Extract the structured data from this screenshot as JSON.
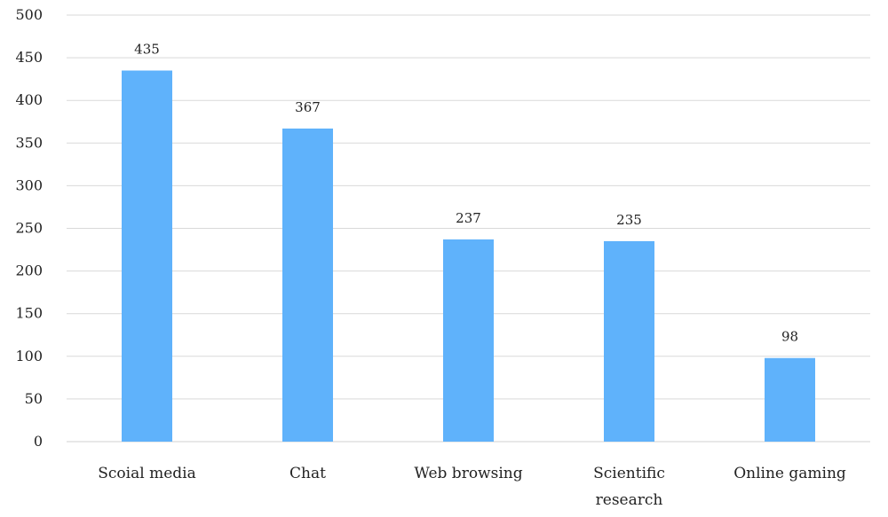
{
  "chart_data": {
    "type": "bar",
    "categories": [
      "Scoial media",
      "Chat",
      "Web browsing",
      "Scientific research",
      "Online gaming"
    ],
    "values": [
      435,
      367,
      237,
      235,
      98
    ],
    "ylim": [
      0,
      500
    ],
    "yticks": [
      0,
      50,
      100,
      150,
      200,
      250,
      300,
      350,
      400,
      450,
      500
    ],
    "grid": true,
    "data_labels": true,
    "bar_color": "#5fb2fb"
  }
}
